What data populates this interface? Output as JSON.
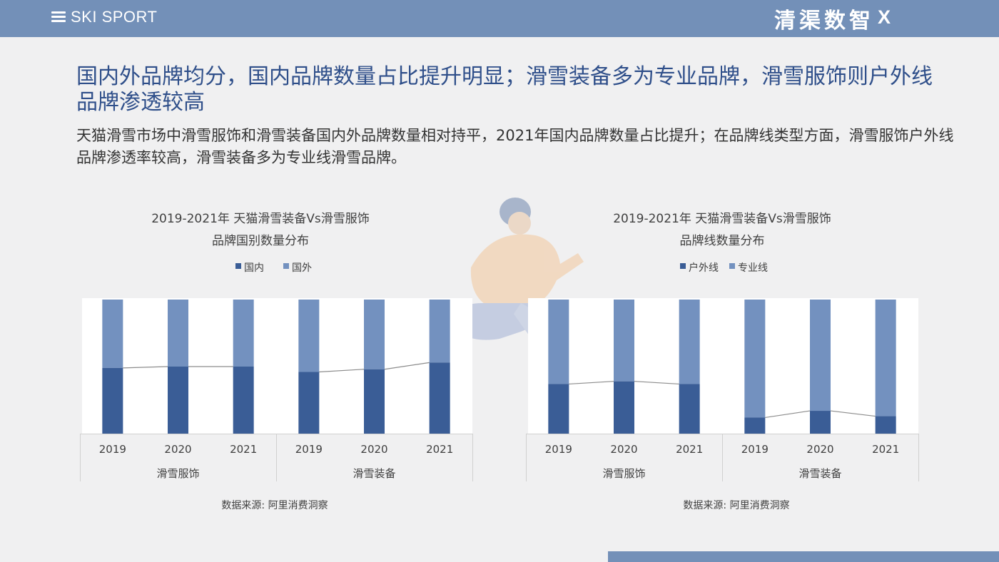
{
  "header": {
    "brand": "SKI SPORT",
    "right_logo": "清渠数智",
    "right_x": "X"
  },
  "title": "国内外品牌均分，国内品牌数量占比提升明显；滑雪装备多为专业品牌，滑雪服饰则户外线品牌渗透较高",
  "subtitle": "天猫滑雪市场中滑雪服饰和滑雪装备国内外品牌数量相对持平，2021年国内品牌数量占比提升；在品牌线类型方面，滑雪服饰户外线品牌渗透率较高，滑雪装备多为专业线滑雪品牌。",
  "colors": {
    "dark_series": "#3a5d96",
    "light_series": "#7391bf",
    "header_bar": "#7390b8",
    "title": "#2f4f8a"
  },
  "chart_data": [
    {
      "type": "bar",
      "stacked": true,
      "percent_stacked": true,
      "title_lines": [
        "2019-2021年 天猫滑雪装备Vs滑雪服饰",
        "品牌国别数量分布"
      ],
      "legend_position": "top",
      "groups": [
        "滑雪服饰",
        "滑雪装备"
      ],
      "categories": [
        "2019",
        "2020",
        "2021",
        "2019",
        "2020",
        "2021"
      ],
      "series": [
        {
          "name": "国内",
          "values": [
            49,
            50,
            50,
            46,
            48,
            53
          ]
        },
        {
          "name": "国外",
          "values": [
            51,
            50,
            50,
            54,
            52,
            47
          ]
        }
      ],
      "ylim": [
        0,
        100
      ],
      "source": "数据来源: 阿里消费洞察"
    },
    {
      "type": "bar",
      "stacked": true,
      "percent_stacked": true,
      "title_lines": [
        "2019-2021年 天猫滑雪装备Vs滑雪服饰",
        "品牌线数量分布"
      ],
      "legend_position": "top",
      "groups": [
        "滑雪服饰",
        "滑雪装备"
      ],
      "categories": [
        "2019",
        "2020",
        "2021",
        "2019",
        "2020",
        "2021"
      ],
      "series": [
        {
          "name": "户外线",
          "values": [
            37,
            39,
            37,
            12,
            17,
            13
          ]
        },
        {
          "name": "专业线",
          "values": [
            63,
            61,
            63,
            88,
            83,
            87
          ]
        }
      ],
      "ylim": [
        0,
        100
      ],
      "source": "数据来源: 阿里消费洞察"
    }
  ]
}
